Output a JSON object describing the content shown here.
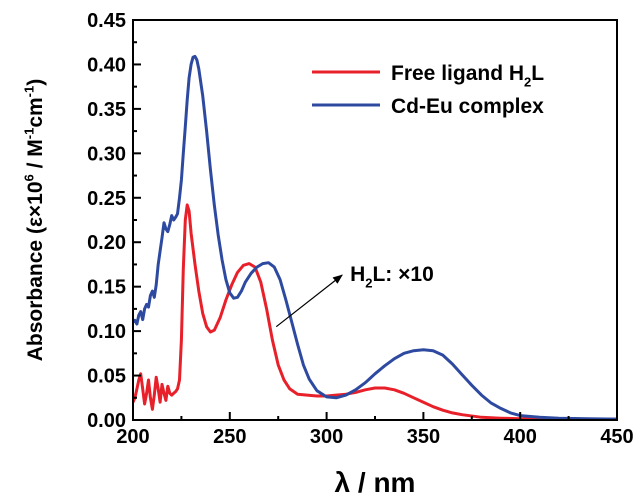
{
  "chart_data": {
    "type": "line",
    "xlabel": "λ / nm",
    "ylabel": {
      "parts": [
        {
          "t": "Absorbance (ε×10"
        },
        {
          "t": "6",
          "sup": true
        },
        {
          "t": " / M"
        },
        {
          "t": "-1",
          "sup": true
        },
        {
          "t": "cm"
        },
        {
          "t": "-1",
          "sup": true
        },
        {
          "t": ")"
        }
      ]
    },
    "xlim": [
      200,
      450
    ],
    "ylim": [
      0,
      0.45
    ],
    "xticks": [
      200,
      250,
      300,
      350,
      400,
      450
    ],
    "xtick_labels": [
      "200",
      "250",
      "300",
      "350",
      "400",
      "450"
    ],
    "yticks": [
      0,
      0.05,
      0.1,
      0.15,
      0.2,
      0.25,
      0.3,
      0.35,
      0.4,
      0.45
    ],
    "ytick_labels": [
      "0.00",
      "0.05",
      "0.10",
      "0.15",
      "0.20",
      "0.25",
      "0.30",
      "0.35",
      "0.40",
      "0.45"
    ],
    "grid": false,
    "legend_position": "top-right",
    "series": [
      {
        "name": "Free ligand H₂L",
        "label_parts": [
          {
            "t": "Free ligand H"
          },
          {
            "t": "2",
            "sub": true
          },
          {
            "t": "L"
          }
        ],
        "color": "#e8202a",
        "points": [
          [
            200,
            0.02
          ],
          [
            201,
            0.025
          ],
          [
            202,
            0.035
          ],
          [
            203,
            0.045
          ],
          [
            204,
            0.052
          ],
          [
            205,
            0.035
          ],
          [
            206,
            0.018
          ],
          [
            207,
            0.03
          ],
          [
            208,
            0.045
          ],
          [
            209,
            0.025
          ],
          [
            210,
            0.012
          ],
          [
            211,
            0.028
          ],
          [
            212,
            0.048
          ],
          [
            213,
            0.035
          ],
          [
            214,
            0.02
          ],
          [
            215,
            0.04
          ],
          [
            216,
            0.03
          ],
          [
            217,
            0.022
          ],
          [
            218,
            0.038
          ],
          [
            219,
            0.03
          ],
          [
            220,
            0.028
          ],
          [
            221,
            0.03
          ],
          [
            222,
            0.032
          ],
          [
            223,
            0.035
          ],
          [
            224,
            0.045
          ],
          [
            225,
            0.09
          ],
          [
            226,
            0.17
          ],
          [
            227,
            0.225
          ],
          [
            228,
            0.242
          ],
          [
            229,
            0.235
          ],
          [
            230,
            0.21
          ],
          [
            232,
            0.175
          ],
          [
            234,
            0.145
          ],
          [
            236,
            0.12
          ],
          [
            238,
            0.105
          ],
          [
            240,
            0.099
          ],
          [
            242,
            0.101
          ],
          [
            245,
            0.115
          ],
          [
            248,
            0.135
          ],
          [
            251,
            0.152
          ],
          [
            254,
            0.166
          ],
          [
            257,
            0.174
          ],
          [
            260,
            0.176
          ],
          [
            263,
            0.172
          ],
          [
            266,
            0.155
          ],
          [
            269,
            0.125
          ],
          [
            272,
            0.09
          ],
          [
            275,
            0.062
          ],
          [
            278,
            0.045
          ],
          [
            281,
            0.035
          ],
          [
            285,
            0.029
          ],
          [
            290,
            0.028
          ],
          [
            295,
            0.027
          ],
          [
            300,
            0.027
          ],
          [
            305,
            0.028
          ],
          [
            310,
            0.029
          ],
          [
            315,
            0.031
          ],
          [
            320,
            0.034
          ],
          [
            325,
            0.036
          ],
          [
            330,
            0.036
          ],
          [
            335,
            0.034
          ],
          [
            340,
            0.03
          ],
          [
            345,
            0.025
          ],
          [
            350,
            0.02
          ],
          [
            355,
            0.015
          ],
          [
            360,
            0.011
          ],
          [
            365,
            0.008
          ],
          [
            370,
            0.006
          ],
          [
            380,
            0.003
          ],
          [
            390,
            0.002
          ],
          [
            400,
            0.0015
          ],
          [
            420,
            0.001
          ],
          [
            450,
            0.001
          ]
        ]
      },
      {
        "name": "Cd-Eu complex",
        "label_parts": [
          {
            "t": "Cd-Eu complex"
          }
        ],
        "color": "#2e4aa0",
        "points": [
          [
            200,
            0.11
          ],
          [
            201,
            0.112
          ],
          [
            202,
            0.108
          ],
          [
            203,
            0.118
          ],
          [
            204,
            0.122
          ],
          [
            205,
            0.113
          ],
          [
            206,
            0.125
          ],
          [
            207,
            0.13
          ],
          [
            208,
            0.127
          ],
          [
            209,
            0.14
          ],
          [
            210,
            0.145
          ],
          [
            211,
            0.138
          ],
          [
            212,
            0.152
          ],
          [
            213,
            0.175
          ],
          [
            214,
            0.19
          ],
          [
            215,
            0.205
          ],
          [
            216,
            0.222
          ],
          [
            217,
            0.215
          ],
          [
            218,
            0.212
          ],
          [
            219,
            0.22
          ],
          [
            220,
            0.23
          ],
          [
            221,
            0.225
          ],
          [
            222,
            0.228
          ],
          [
            223,
            0.232
          ],
          [
            224,
            0.25
          ],
          [
            225,
            0.27
          ],
          [
            226,
            0.3
          ],
          [
            227,
            0.33
          ],
          [
            228,
            0.36
          ],
          [
            229,
            0.385
          ],
          [
            230,
            0.4
          ],
          [
            231,
            0.408
          ],
          [
            232,
            0.409
          ],
          [
            233,
            0.405
          ],
          [
            234,
            0.395
          ],
          [
            236,
            0.365
          ],
          [
            238,
            0.325
          ],
          [
            240,
            0.282
          ],
          [
            242,
            0.242
          ],
          [
            244,
            0.208
          ],
          [
            246,
            0.18
          ],
          [
            248,
            0.158
          ],
          [
            250,
            0.143
          ],
          [
            252,
            0.137
          ],
          [
            254,
            0.138
          ],
          [
            256,
            0.145
          ],
          [
            258,
            0.155
          ],
          [
            261,
            0.165
          ],
          [
            264,
            0.172
          ],
          [
            267,
            0.176
          ],
          [
            270,
            0.177
          ],
          [
            273,
            0.172
          ],
          [
            276,
            0.158
          ],
          [
            279,
            0.135
          ],
          [
            282,
            0.11
          ],
          [
            285,
            0.085
          ],
          [
            288,
            0.062
          ],
          [
            291,
            0.046
          ],
          [
            295,
            0.033
          ],
          [
            300,
            0.026
          ],
          [
            305,
            0.025
          ],
          [
            310,
            0.028
          ],
          [
            315,
            0.034
          ],
          [
            320,
            0.042
          ],
          [
            325,
            0.052
          ],
          [
            330,
            0.061
          ],
          [
            335,
            0.069
          ],
          [
            340,
            0.075
          ],
          [
            345,
            0.078
          ],
          [
            350,
            0.079
          ],
          [
            355,
            0.078
          ],
          [
            360,
            0.073
          ],
          [
            365,
            0.063
          ],
          [
            370,
            0.051
          ],
          [
            375,
            0.039
          ],
          [
            380,
            0.028
          ],
          [
            385,
            0.019
          ],
          [
            390,
            0.013
          ],
          [
            395,
            0.008
          ],
          [
            400,
            0.005
          ],
          [
            410,
            0.003
          ],
          [
            420,
            0.002
          ],
          [
            435,
            0.0015
          ],
          [
            450,
            0.001
          ]
        ]
      }
    ],
    "annotation": {
      "text_parts": [
        {
          "t": "H"
        },
        {
          "t": "2",
          "sub": true
        },
        {
          "t": "L: ×10"
        }
      ],
      "arrow_from": [
        274,
        0.105
      ],
      "arrow_to": [
        308,
        0.163
      ]
    }
  }
}
